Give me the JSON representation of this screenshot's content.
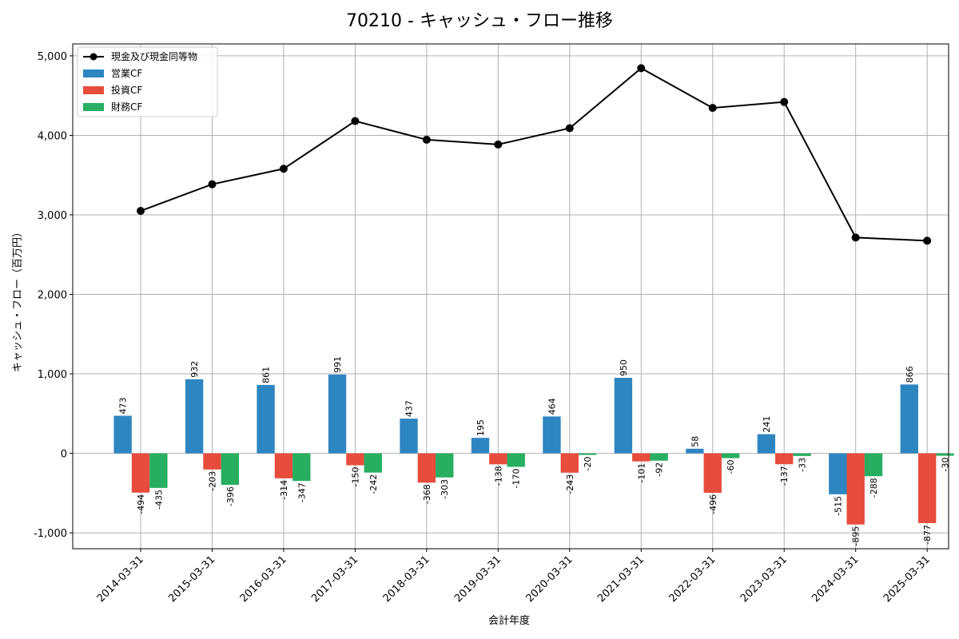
{
  "chart_data": {
    "type": "bar",
    "title": "70210 - キャッシュ・フロー推移",
    "xlabel": "会計年度",
    "ylabel": "キャッシュ・フロー（百万円）",
    "ylim": [
      -1200,
      5150
    ],
    "yticks": [
      -1000,
      0,
      1000,
      2000,
      3000,
      4000,
      5000
    ],
    "ytick_labels": [
      "-1,000",
      "0",
      "1,000",
      "2,000",
      "3,000",
      "4,000",
      "5,000"
    ],
    "grid": true,
    "legend_position": "top-left",
    "categories": [
      "2014-03-31",
      "2015-03-31",
      "2016-03-31",
      "2017-03-31",
      "2018-03-31",
      "2019-03-31",
      "2020-03-31",
      "2021-03-31",
      "2022-03-31",
      "2023-03-31",
      "2024-03-31",
      "2025-03-31"
    ],
    "series": [
      {
        "name": "営業CF",
        "kind": "bar",
        "color": "#2e86c1",
        "values": [
          473,
          932,
          861,
          991,
          437,
          195,
          464,
          950,
          58,
          241,
          -515,
          866
        ]
      },
      {
        "name": "投資CF",
        "kind": "bar",
        "color": "#e74c3c",
        "values": [
          -494,
          -203,
          -314,
          -150,
          -368,
          -138,
          -243,
          -101,
          -496,
          -137,
          -895,
          -877
        ]
      },
      {
        "name": "財務CF",
        "kind": "bar",
        "color": "#27ae60",
        "values": [
          -435,
          -396,
          -347,
          -242,
          -303,
          -170,
          -20,
          -92,
          -60,
          -33,
          -288,
          -30
        ]
      },
      {
        "name": "現金及び現金同等物",
        "kind": "line",
        "color": "#000000",
        "values": [
          3050,
          3385,
          3580,
          4180,
          3945,
          3885,
          4090,
          4845,
          4345,
          4420,
          2715,
          2675
        ]
      }
    ]
  }
}
